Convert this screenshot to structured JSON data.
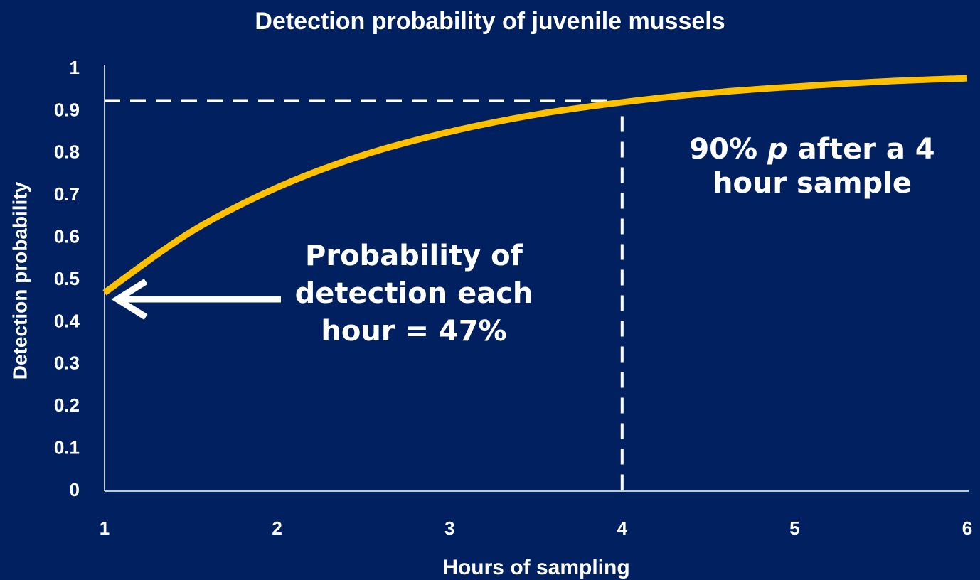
{
  "chart_data": {
    "type": "line",
    "title": "Detection probability of juvenile mussels",
    "x_label": "Hours of sampling",
    "y_label": "Detection probability",
    "x": [
      1,
      1.5,
      2,
      2.5,
      3,
      3.5,
      4,
      4.5,
      5,
      5.5,
      6
    ],
    "series": [
      {
        "name": "Detection probability",
        "color": "#ffc000",
        "values": [
          0.47,
          0.614,
          0.719,
          0.796,
          0.851,
          0.892,
          0.921,
          0.943,
          0.958,
          0.97,
          0.978
        ]
      }
    ],
    "xlim": [
      1,
      6
    ],
    "xticks": [
      1,
      2,
      3,
      4,
      5,
      6
    ],
    "ylim": [
      0,
      1
    ],
    "yticks": [
      0,
      0.1,
      0.2,
      0.3,
      0.4,
      0.5,
      0.6,
      0.7,
      0.8,
      0.9,
      1
    ],
    "reference_y": 0.925,
    "reference_x": 4,
    "annotation_left": [
      "Probability of",
      "detection each",
      "hour = 47%"
    ],
    "annotation_right": {
      "line1": [
        "90% ",
        "p",
        " after a 4"
      ],
      "line2": "hour sample"
    }
  }
}
